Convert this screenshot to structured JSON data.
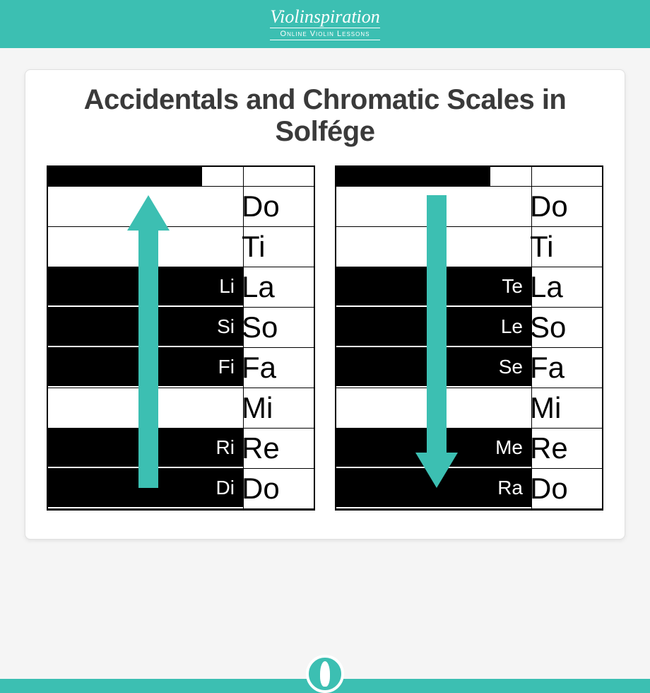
{
  "header": {
    "brand": "Violinspiration",
    "subtitle": "Online Violin Lessons"
  },
  "title": "Accidentals and Chromatic Scales in Solfége",
  "colors": {
    "accent": "#3cbfb2",
    "black": "#000000",
    "white": "#ffffff",
    "text_gray": "#3a3a3a"
  },
  "left_keyboard": {
    "arrow_direction": "up",
    "rows": [
      {
        "type": "black_top",
        "black_width": 218,
        "label": ""
      },
      {
        "type": "white",
        "label": "Do"
      },
      {
        "type": "white",
        "label": "Ti"
      },
      {
        "type": "black_white",
        "black_label": "Li",
        "black_width": 276,
        "white_label": "La"
      },
      {
        "type": "black_white",
        "black_label": "Si",
        "black_width": 276,
        "white_label": "So"
      },
      {
        "type": "black_white",
        "black_label": "Fi",
        "black_width": 276,
        "white_label": "Fa"
      },
      {
        "type": "white",
        "label": "Mi"
      },
      {
        "type": "black_white",
        "black_label": "Ri",
        "black_width": 276,
        "white_label": "Re"
      },
      {
        "type": "black_white",
        "black_label": "Di",
        "black_width": 276,
        "white_label": "Do"
      }
    ]
  },
  "right_keyboard": {
    "arrow_direction": "down",
    "rows": [
      {
        "type": "black_top",
        "black_width": 218,
        "label": ""
      },
      {
        "type": "white",
        "label": "Do"
      },
      {
        "type": "white",
        "label": "Ti"
      },
      {
        "type": "black_white",
        "black_label": "Te",
        "black_width": 276,
        "white_label": "La"
      },
      {
        "type": "black_white",
        "black_label": "Le",
        "black_width": 276,
        "white_label": "So"
      },
      {
        "type": "black_white",
        "black_label": "Se",
        "black_width": 276,
        "white_label": "Fa"
      },
      {
        "type": "white",
        "label": "Mi"
      },
      {
        "type": "black_white",
        "black_label": "Me",
        "black_width": 276,
        "white_label": "Re"
      },
      {
        "type": "black_white",
        "black_label": "Ra",
        "black_width": 276,
        "white_label": "Do"
      }
    ]
  }
}
